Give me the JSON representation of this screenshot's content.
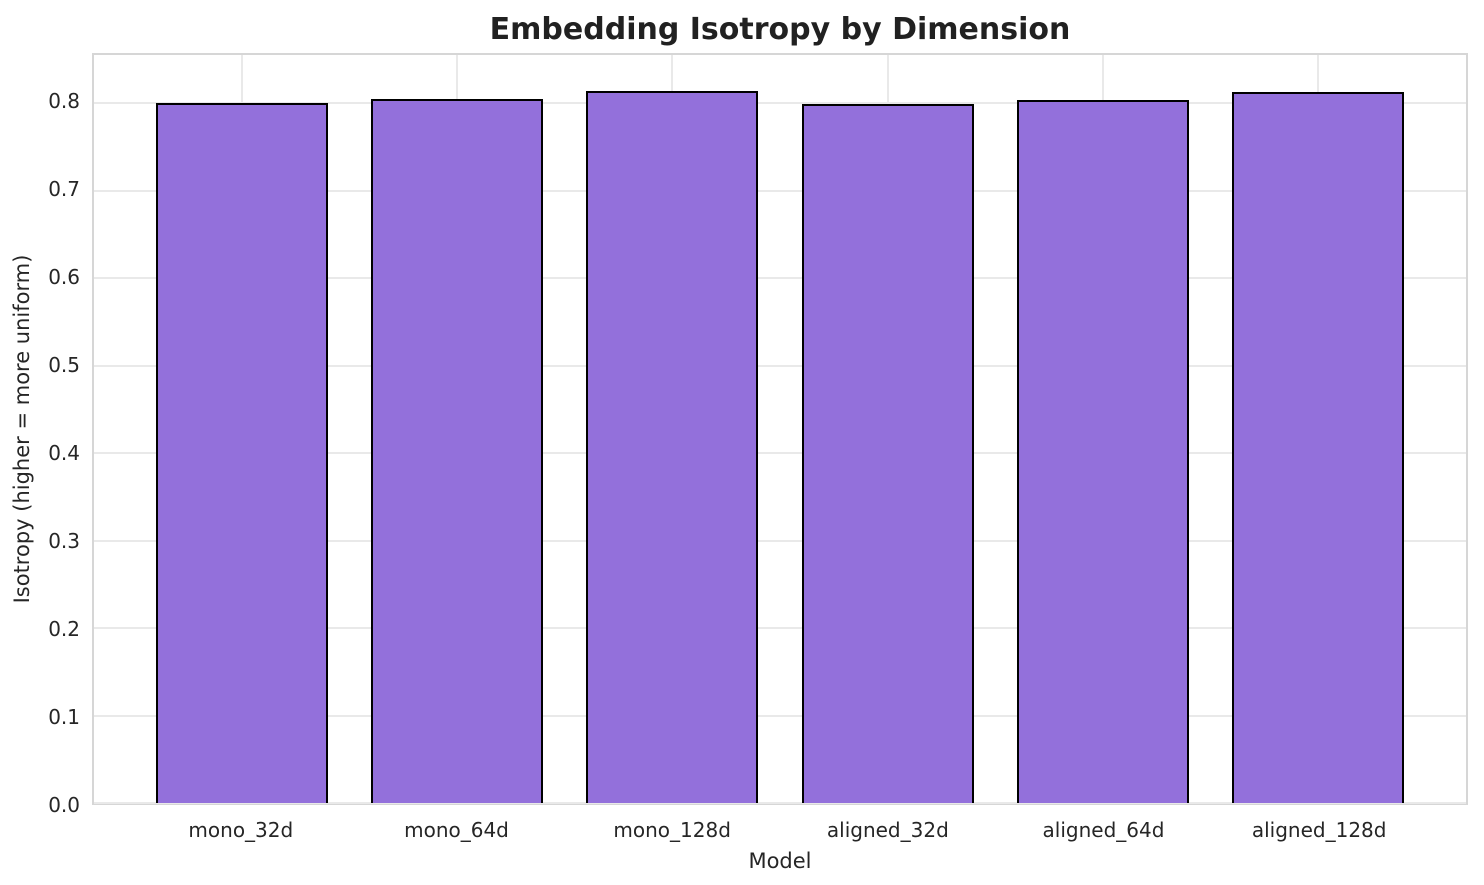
{
  "chart_data": {
    "type": "bar",
    "title": "Embedding Isotropy by Dimension",
    "xlabel": "Model",
    "ylabel": "Isotropy (higher = more uniform)",
    "categories": [
      "mono_32d",
      "mono_64d",
      "mono_128d",
      "aligned_32d",
      "aligned_64d",
      "aligned_128d"
    ],
    "values": [
      0.8,
      0.805,
      0.814,
      0.799,
      0.804,
      0.813
    ],
    "ylim": [
      0,
      0.855
    ],
    "yticks": [
      0.0,
      0.1,
      0.2,
      0.3,
      0.4,
      0.5,
      0.6,
      0.7,
      0.8
    ],
    "ytick_labels": [
      "0.0",
      "0.1",
      "0.2",
      "0.3",
      "0.4",
      "0.5",
      "0.6",
      "0.7",
      "0.8"
    ],
    "xlim": [
      -0.69,
      5.69
    ],
    "bar_width": 0.8,
    "grid": true,
    "legend": "none",
    "styles": {
      "bar_fill": "#9370db",
      "bar_edge": "#000000",
      "grid_color": "#e9e9e9",
      "spine_color": "#d6d6d6",
      "text_color": "#262626",
      "title_color": "#212121",
      "background": "#ffffff"
    }
  }
}
